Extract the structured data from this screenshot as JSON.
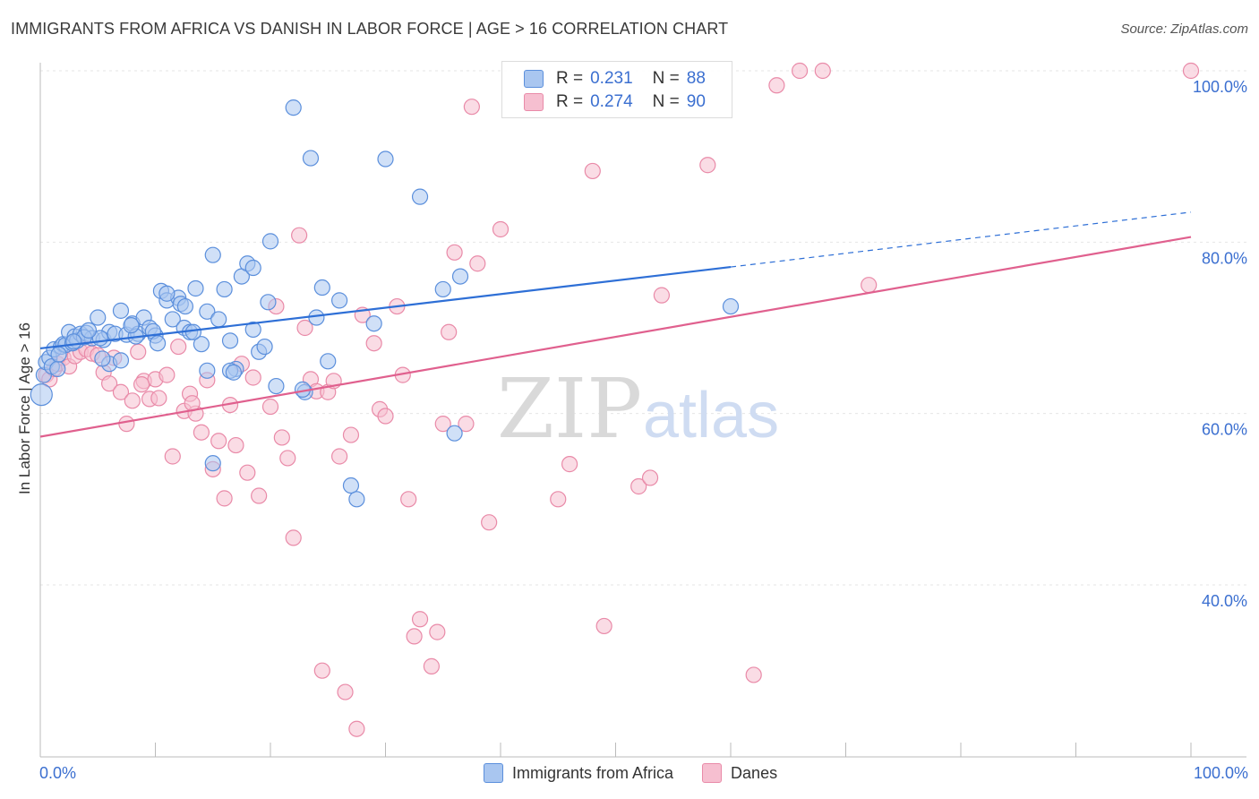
{
  "title": "IMMIGRANTS FROM AFRICA VS DANISH IN LABOR FORCE | AGE > 16 CORRELATION CHART",
  "source": "Source: ZipAtlas.com",
  "watermark": {
    "zip": "ZIP",
    "atlas": "atlas"
  },
  "legend": {
    "rows": [
      {
        "r_label": "R =",
        "r_value": "0.231",
        "n_label": "N =",
        "n_value": "88"
      },
      {
        "r_label": "R =",
        "r_value": "0.274",
        "n_label": "N =",
        "n_value": "90"
      }
    ]
  },
  "colors": {
    "blue_fill": "#a9c6f0",
    "blue_stroke": "#5b8fdc",
    "blue_line": "#2e6fd6",
    "pink_fill": "#f6bfd0",
    "pink_stroke": "#e98aa8",
    "pink_line": "#e0608e",
    "tick_text": "#3b6fd0",
    "grid": "#e6e6e6"
  },
  "chart_data": {
    "type": "scatter",
    "title": "IMMIGRANTS FROM AFRICA VS DANISH IN LABOR FORCE | AGE > 16 CORRELATION CHART",
    "xlabel": "",
    "ylabel": "In Labor Force | Age > 16",
    "xlim": [
      0,
      100
    ],
    "ylim": [
      20,
      102
    ],
    "x_tick_labels": [
      "0.0%",
      "100.0%"
    ],
    "y_ticks": [
      40,
      60,
      80,
      100
    ],
    "y_tick_labels": [
      "40.0%",
      "60.0%",
      "80.0%",
      "100.0%"
    ],
    "grid": true,
    "legend_position": "top-center",
    "series": [
      {
        "name": "Immigrants from Africa",
        "color": "#a9c6f0",
        "points": [
          [
            0.1,
            62.2
          ],
          [
            0.3,
            64.5
          ],
          [
            0.5,
            66
          ],
          [
            0.8,
            66.5
          ],
          [
            1,
            65.5
          ],
          [
            1.2,
            67.5
          ],
          [
            1.5,
            65.2
          ],
          [
            1.8,
            67.8
          ],
          [
            2,
            68.1
          ],
          [
            2.2,
            68
          ],
          [
            2.5,
            69.5
          ],
          [
            2.8,
            68.2
          ],
          [
            3,
            69
          ],
          [
            3.2,
            68.5
          ],
          [
            3.5,
            69.3
          ],
          [
            4,
            69.4
          ],
          [
            4.5,
            68.8
          ],
          [
            5,
            71.2
          ],
          [
            5.5,
            68.6
          ],
          [
            6,
            69.5
          ],
          [
            6.5,
            69.3
          ],
          [
            7,
            72
          ],
          [
            7.5,
            69.2
          ],
          [
            8,
            70.5
          ],
          [
            8.5,
            69.3
          ],
          [
            9,
            71.2
          ],
          [
            9.5,
            70
          ],
          [
            10,
            69.1
          ],
          [
            10.5,
            74.3
          ],
          [
            11,
            73.2
          ],
          [
            11.5,
            71
          ],
          [
            12,
            73.5
          ],
          [
            12.5,
            70
          ],
          [
            13,
            69.5
          ],
          [
            13.5,
            74.6
          ],
          [
            14,
            68.1
          ],
          [
            14.5,
            71.9
          ],
          [
            15,
            78.5
          ],
          [
            15.5,
            71
          ],
          [
            16,
            74.5
          ],
          [
            16.5,
            68.5
          ],
          [
            17,
            65.2
          ],
          [
            17.5,
            76
          ],
          [
            18,
            77.5
          ],
          [
            18.5,
            69.8
          ],
          [
            19,
            67.2
          ],
          [
            19.5,
            67.8
          ],
          [
            20,
            80.1
          ],
          [
            20.5,
            63.2
          ],
          [
            22,
            95.7
          ],
          [
            23,
            62.5
          ],
          [
            23.5,
            89.8
          ],
          [
            24,
            71.2
          ],
          [
            24.5,
            74.7
          ],
          [
            25,
            66.1
          ],
          [
            26,
            73.2
          ],
          [
            27,
            51.6
          ],
          [
            29,
            70.5
          ],
          [
            30,
            89.7
          ],
          [
            33,
            85.3
          ],
          [
            35,
            74.5
          ],
          [
            36,
            57.7
          ],
          [
            36.5,
            76
          ],
          [
            27.5,
            50
          ],
          [
            14.5,
            65
          ],
          [
            15,
            54.2
          ],
          [
            16.5,
            65
          ],
          [
            6,
            65.8
          ],
          [
            7,
            66.2
          ],
          [
            3.8,
            68.9
          ],
          [
            8.3,
            69
          ],
          [
            9.8,
            69.6
          ],
          [
            11,
            74
          ],
          [
            12.2,
            72.8
          ],
          [
            13.3,
            69.5
          ],
          [
            5.2,
            68.8
          ],
          [
            2.9,
            68.4
          ],
          [
            1.6,
            66.9
          ],
          [
            4.2,
            69.7
          ],
          [
            10.2,
            68.2
          ],
          [
            60,
            72.5
          ],
          [
            22.8,
            62.8
          ],
          [
            18.5,
            77
          ],
          [
            7.9,
            70.3
          ],
          [
            16.8,
            64.8
          ],
          [
            19.8,
            73
          ],
          [
            5.4,
            66.4
          ],
          [
            12.6,
            72.5
          ]
        ]
      },
      {
        "name": "Danes",
        "color": "#f6bfd0",
        "points": [
          [
            0.5,
            64.5
          ],
          [
            0.8,
            64
          ],
          [
            1.2,
            65.2
          ],
          [
            1.5,
            65.8
          ],
          [
            2,
            66.5
          ],
          [
            2.5,
            65.5
          ],
          [
            3,
            66.7
          ],
          [
            3.5,
            67.2
          ],
          [
            4,
            67.5
          ],
          [
            4.5,
            67
          ],
          [
            5,
            66.8
          ],
          [
            5.5,
            64.8
          ],
          [
            6,
            63.5
          ],
          [
            7,
            62.5
          ],
          [
            7.5,
            58.8
          ],
          [
            8,
            61.5
          ],
          [
            8.5,
            67.2
          ],
          [
            9,
            63.8
          ],
          [
            9.5,
            61.7
          ],
          [
            10,
            64
          ],
          [
            11,
            64.5
          ],
          [
            11.5,
            55
          ],
          [
            12,
            67.8
          ],
          [
            12.5,
            60.3
          ],
          [
            13,
            62.3
          ],
          [
            13.5,
            60
          ],
          [
            14,
            57.8
          ],
          [
            14.5,
            63.9
          ],
          [
            15,
            53.5
          ],
          [
            15.5,
            56.8
          ],
          [
            16,
            50.1
          ],
          [
            16.5,
            61
          ],
          [
            17,
            56.3
          ],
          [
            17.5,
            65.8
          ],
          [
            18,
            53.1
          ],
          [
            18.5,
            64.2
          ],
          [
            19,
            50.4
          ],
          [
            20,
            60.8
          ],
          [
            20.5,
            72.5
          ],
          [
            21,
            57.2
          ],
          [
            21.5,
            54.8
          ],
          [
            22,
            45.5
          ],
          [
            22.5,
            80.8
          ],
          [
            23,
            70
          ],
          [
            23.5,
            64
          ],
          [
            24,
            62.6
          ],
          [
            24.5,
            30
          ],
          [
            25,
            62.5
          ],
          [
            25.5,
            63.8
          ],
          [
            26,
            55
          ],
          [
            26.5,
            27.5
          ],
          [
            27,
            57.5
          ],
          [
            27.5,
            23.2
          ],
          [
            28,
            71.5
          ],
          [
            29,
            68.2
          ],
          [
            29.5,
            60.5
          ],
          [
            30,
            59.7
          ],
          [
            31,
            72.5
          ],
          [
            31.5,
            64.5
          ],
          [
            32,
            50
          ],
          [
            32.5,
            34
          ],
          [
            33,
            36
          ],
          [
            34,
            30.5
          ],
          [
            34.5,
            34.5
          ],
          [
            35,
            58.8
          ],
          [
            35.5,
            69.5
          ],
          [
            36,
            78.8
          ],
          [
            37,
            58.8
          ],
          [
            37.5,
            95.8
          ],
          [
            38,
            77.5
          ],
          [
            39,
            47.3
          ],
          [
            40,
            81.5
          ],
          [
            45,
            50
          ],
          [
            46,
            54.1
          ],
          [
            48,
            88.3
          ],
          [
            49,
            35.2
          ],
          [
            52,
            51.5
          ],
          [
            53,
            52.5
          ],
          [
            54,
            73.8
          ],
          [
            58,
            89
          ],
          [
            62,
            29.5
          ],
          [
            64,
            98.3
          ],
          [
            66,
            100
          ],
          [
            68,
            100
          ],
          [
            72,
            75
          ],
          [
            100,
            100
          ],
          [
            10.3,
            61.8
          ],
          [
            8.8,
            63.4
          ],
          [
            13.2,
            61.2
          ],
          [
            6.4,
            66.5
          ]
        ]
      }
    ],
    "trend_lines": [
      {
        "series": "Immigrants from Africa",
        "x_start": 0,
        "y_start": 67.6,
        "x_solid_end": 60,
        "y_solid_end": 77.1,
        "x_end": 100,
        "y_end": 83.5
      },
      {
        "series": "Danes",
        "x_start": 0,
        "y_start": 57.3,
        "x_end": 100,
        "y_end": 80.6
      }
    ]
  }
}
